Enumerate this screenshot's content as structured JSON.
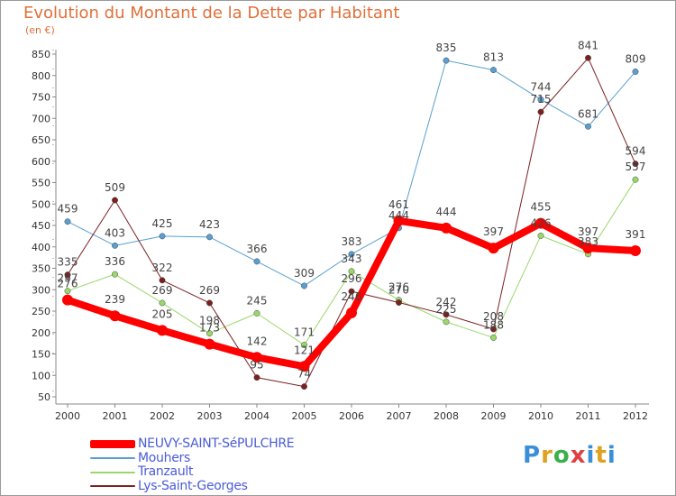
{
  "title": "Evolution du Montant de la Dette par Habitant",
  "subtitle": "(en €)",
  "logo": "Proxiti",
  "chart_data": {
    "type": "line",
    "title": "Evolution du Montant de la Dette par Habitant",
    "subtitle": "(en €)",
    "xlabel": "",
    "ylabel": "",
    "x": [
      "2000",
      "2001",
      "2002",
      "2003",
      "2004",
      "2005",
      "2006",
      "2007",
      "2008",
      "2009",
      "2010",
      "2011",
      "2012"
    ],
    "ylim": [
      50,
      860
    ],
    "yticks": [
      50,
      100,
      150,
      200,
      250,
      300,
      350,
      400,
      450,
      500,
      550,
      600,
      650,
      700,
      750,
      800,
      850
    ],
    "grid": false,
    "legend_position": "bottom-left",
    "series": [
      {
        "name": "NEUVY-SAINT-SéPULCHRE",
        "color": "#ff0000",
        "width": 8,
        "values": [
          276,
          239,
          205,
          173,
          142,
          121,
          246,
          461,
          444,
          397,
          455,
          397,
          391
        ]
      },
      {
        "name": "Mouhers",
        "color": "#5a9fd0",
        "width": 1,
        "values": [
          459,
          403,
          425,
          423,
          366,
          309,
          383,
          444,
          835,
          813,
          744,
          681,
          809
        ]
      },
      {
        "name": "Tranzault",
        "color": "#9ad86a",
        "width": 1,
        "values": [
          297,
          336,
          269,
          198,
          245,
          171,
          343,
          276,
          225,
          188,
          426,
          383,
          557
        ]
      },
      {
        "name": "Lys-Saint-Georges",
        "color": "#7a2020",
        "width": 1,
        "values": [
          335,
          509,
          322,
          269,
          95,
          74,
          296,
          270,
          242,
          208,
          715,
          841,
          594
        ]
      }
    ],
    "labels": [
      {
        "series": 0,
        "text": [
          "276",
          "239",
          "205",
          "173",
          "142",
          "121",
          "246",
          "461",
          "444",
          "397",
          "455",
          "397",
          "391"
        ]
      },
      {
        "series": 1,
        "text": [
          "459",
          "403",
          "425",
          "423",
          "366",
          "309",
          "383",
          "444",
          "835",
          "813",
          "744",
          "681",
          "809"
        ]
      },
      {
        "series": 2,
        "text": [
          "297",
          "336",
          "269",
          "198",
          "245",
          "171",
          "343",
          "276",
          "225",
          "188",
          "426",
          "383",
          "557"
        ]
      },
      {
        "series": 3,
        "text": [
          "335",
          "509",
          "322",
          "269",
          "95",
          "74",
          "296",
          "270",
          "242",
          "208",
          "715",
          "841",
          "594"
        ]
      }
    ]
  }
}
